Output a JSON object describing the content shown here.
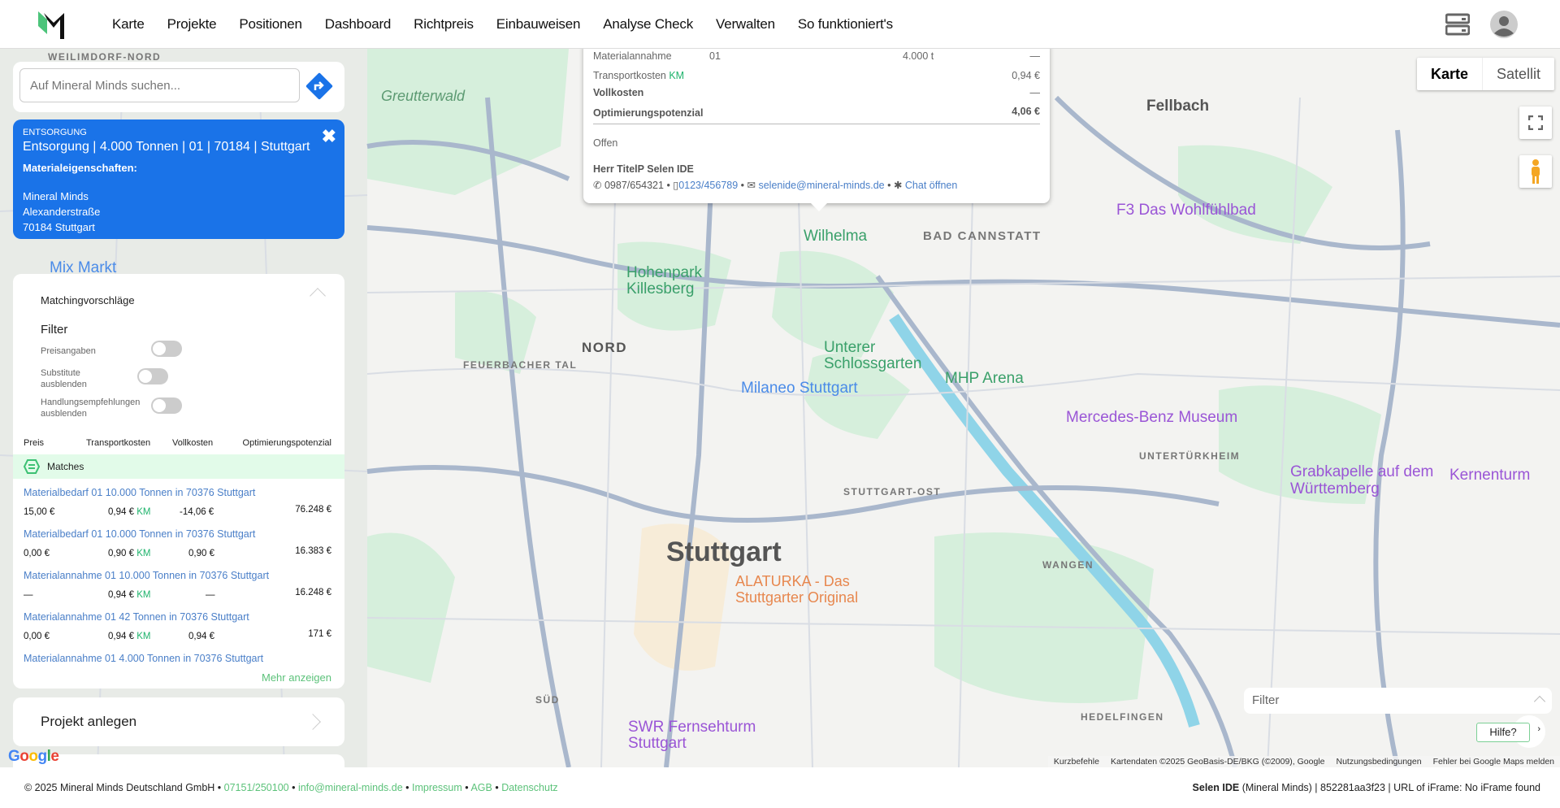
{
  "header": {
    "nav": [
      "Karte",
      "Projekte",
      "Positionen",
      "Dashboard",
      "Richtpreis",
      "Einbauweisen",
      "Analyse Check",
      "Verwalten",
      "So funktioniert's"
    ],
    "icons": [
      "server-icon",
      "user-avatar-icon"
    ]
  },
  "search": {
    "placeholder": "Auf Mineral Minds suchen...",
    "icon": "directions-icon"
  },
  "selected": {
    "type": "ENTSORGUNG",
    "title": "Entsorgung | 4.000 Tonnen | 01 | 70184 | Stuttgart",
    "props_label": "Materialeigenschaften:",
    "address": [
      "Mineral Minds",
      "Alexanderstraße",
      "70184 Stuttgart"
    ]
  },
  "matching": {
    "title": "Matchingvorschläge",
    "filter_label": "Filter",
    "toggles": [
      {
        "label": "Preisangaben",
        "on": false
      },
      {
        "label": "Substitute ausblenden",
        "on": false
      },
      {
        "label": "Handlungsempfehlungen ausblenden",
        "on": false
      }
    ],
    "columns": [
      "Preis",
      "Transportkosten",
      "Vollkosten",
      "Optimierungspotenzial"
    ],
    "section": "Matches",
    "km": "KM",
    "rows": [
      {
        "title": "Materialbedarf 01 10.000 Tonnen in 70376 Stuttgart",
        "preis": "15,00 €",
        "transport": "0,94 €",
        "voll": "-14,06 €",
        "opt": "76.248 €"
      },
      {
        "title": "Materialbedarf 01 10.000 Tonnen in 70376 Stuttgart",
        "preis": "0,00 €",
        "transport": "0,90 €",
        "voll": "0,90 €",
        "opt": "16.383 €"
      },
      {
        "title": "Materialannahme 01 10.000 Tonnen in 70376 Stuttgart",
        "preis": "—",
        "transport": "0,94 €",
        "voll": "—",
        "opt": "16.248 €"
      },
      {
        "title": "Materialannahme 01 42 Tonnen in 70376 Stuttgart",
        "preis": "0,00 €",
        "transport": "0,94 €",
        "voll": "0,94 €",
        "opt": "171 €"
      },
      {
        "title": "Materialannahme 01 4.000 Tonnen in 70376 Stuttgart",
        "preis": "",
        "transport": "",
        "voll": "",
        "opt": ""
      }
    ],
    "more": "Mehr anzeigen"
  },
  "project": {
    "label": "Projekt anlegen"
  },
  "popup": {
    "row1": {
      "label": "Materialannahme",
      "code": "01",
      "amount": "4.000 t",
      "value": "—"
    },
    "transport": {
      "label": "Transportkosten",
      "km": "KM",
      "value": "0,94 €"
    },
    "voll": {
      "label": "Vollkosten",
      "value": "—"
    },
    "opt": {
      "label": "Optimierungspotenzial",
      "value": "4,06 €"
    },
    "status": "Offen",
    "contact": {
      "name": "Herr TitelP Selen IDE",
      "phone": "0987/654321",
      "mobile": "0123/456789",
      "email": "selenide@mineral-minds.de",
      "chat": "Chat öffnen"
    }
  },
  "map": {
    "type_options": [
      "Karte",
      "Satellit"
    ],
    "selected_type": "Karte",
    "filter": "Filter",
    "help": "Hilfe?",
    "attribution": [
      "Kurzbefehle",
      "Kartendaten ©2025 GeoBasis-DE/BKG (©2009), Google",
      "Nutzungsbedingungen",
      "Fehler bei Google Maps melden"
    ],
    "logo": "Google",
    "labels": [
      "Stuttgart",
      "Bad Cannstatt",
      "Nord",
      "Feuerbacher Tal",
      "Hohenpark Killesberg",
      "Wilhelma",
      "Unterer Schlossgarten",
      "Milaneo Stuttgart",
      "MHP Arena",
      "Mercedes-Benz Museum",
      "Grabkapelle auf dem Württemberg",
      "Stuttgart-Ost",
      "Untertürkheim",
      "Fellbach",
      "Greutterwald",
      "SWR Fernsehturm Stuttgart",
      "F3 Das Wohlfühlbad",
      "Kernenturm",
      "Süd",
      "Weilimdorf-Nord",
      "Mix Markt",
      "ALATURKA - Das Stuttgarter Original",
      "Wangen",
      "Hedelfingen"
    ]
  },
  "footer": {
    "copyright": "© 2025 Mineral Minds Deutschland GmbH",
    "phone": "07151/250100",
    "email": "info@mineral-minds.de",
    "links": [
      "Impressum",
      "AGB",
      "Datenschutz"
    ],
    "user": "Selen IDE",
    "user_rest": "(Mineral Minds) | 852281aa3f23 | URL of iFrame: No iFrame found"
  }
}
